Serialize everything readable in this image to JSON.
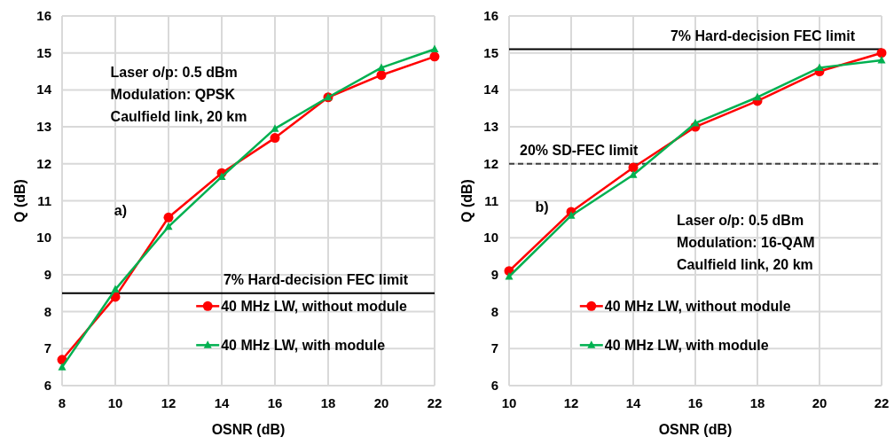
{
  "chart_data": [
    {
      "type": "line",
      "xlabel": "OSNR (dB)",
      "ylabel": "Q (dB)",
      "x": [
        8,
        10,
        12,
        14,
        16,
        18,
        20,
        22
      ],
      "xlim": [
        8,
        22
      ],
      "xticks": [
        8,
        10,
        12,
        14,
        16,
        18,
        20,
        22
      ],
      "ylim": [
        6,
        16
      ],
      "yticks": [
        6,
        7,
        8,
        9,
        10,
        11,
        12,
        13,
        14,
        15,
        16
      ],
      "grid": true,
      "legend": "bottom right",
      "series": [
        {
          "name": "40 MHz LW, without module",
          "color": "#ff0000",
          "marker": "circle",
          "values": [
            6.7,
            8.4,
            10.55,
            11.75,
            12.7,
            13.8,
            14.4,
            14.9
          ]
        },
        {
          "name": "40 MHz LW, with module",
          "color": "#00b050",
          "marker": "triangle",
          "values": [
            6.5,
            8.6,
            10.3,
            11.65,
            12.95,
            13.8,
            14.6,
            15.1
          ]
        }
      ],
      "ref_lines": [
        {
          "axis": "y",
          "value": 8.5,
          "label": "7% Hard-decision FEC limit",
          "color": "#000000",
          "line_style": "solid"
        }
      ],
      "annotations": [
        "Laser o/p: 0.5 dBm",
        "Modulation: QPSK",
        "Caulfield link, 20 km",
        "a)"
      ]
    },
    {
      "type": "line",
      "xlabel": "OSNR (dB)",
      "ylabel": "Q (dB)",
      "x": [
        10,
        12,
        14,
        16,
        18,
        20,
        22
      ],
      "xlim": [
        10,
        22
      ],
      "xticks": [
        10,
        12,
        14,
        16,
        18,
        20,
        22
      ],
      "ylim": [
        6,
        16
      ],
      "yticks": [
        6,
        7,
        8,
        9,
        10,
        11,
        12,
        13,
        14,
        15,
        16
      ],
      "grid": true,
      "legend": "bottom right",
      "series": [
        {
          "name": "40 MHz LW, without module",
          "color": "#ff0000",
          "marker": "circle",
          "values": [
            9.1,
            10.7,
            11.9,
            13.0,
            13.7,
            14.5,
            15.0
          ]
        },
        {
          "name": "40 MHz LW, with module",
          "color": "#00b050",
          "marker": "triangle",
          "values": [
            8.95,
            10.6,
            11.7,
            13.1,
            13.8,
            14.6,
            14.8
          ]
        }
      ],
      "ref_lines": [
        {
          "axis": "y",
          "value": 15.1,
          "label": "7% Hard-decision FEC limit",
          "color": "#000000",
          "line_style": "solid"
        },
        {
          "axis": "y",
          "value": 12.0,
          "label": "20% SD-FEC limit",
          "color": "#404040",
          "line_style": "dashed"
        }
      ],
      "annotations": [
        "b)",
        "Laser o/p: 0.5 dBm",
        "Modulation: 16-QAM",
        "Caulfield link, 20 km"
      ]
    }
  ]
}
